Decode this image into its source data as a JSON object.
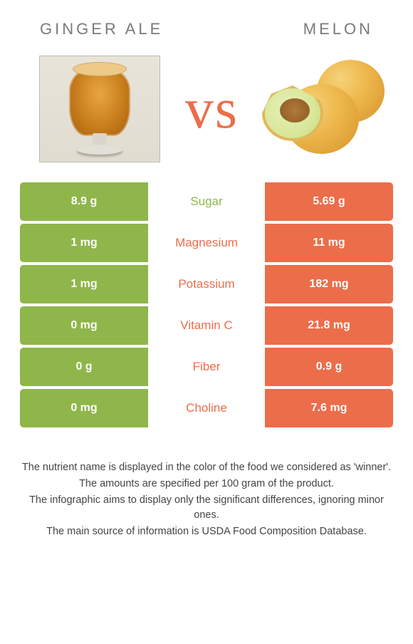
{
  "colors": {
    "left": "#8fb64a",
    "right": "#ec6d4a",
    "mid_text_winner_left": "#8fb64a",
    "mid_text_winner_right": "#ec6d4a"
  },
  "header": {
    "left_title": "GINGER ALE",
    "right_title": "MELON",
    "vs": "vs"
  },
  "rows": [
    {
      "left": "8.9 g",
      "label": "Sugar",
      "right": "5.69 g",
      "winner": "left"
    },
    {
      "left": "1 mg",
      "label": "Magnesium",
      "right": "11 mg",
      "winner": "right"
    },
    {
      "left": "1 mg",
      "label": "Potassium",
      "right": "182 mg",
      "winner": "right"
    },
    {
      "left": "0 mg",
      "label": "Vitamin C",
      "right": "21.8 mg",
      "winner": "right"
    },
    {
      "left": "0 g",
      "label": "Fiber",
      "right": "0.9 g",
      "winner": "right"
    },
    {
      "left": "0 mg",
      "label": "Choline",
      "right": "7.6 mg",
      "winner": "right"
    }
  ],
  "footnotes": [
    "The nutrient name is displayed in the color of the food we considered as 'winner'.",
    "The amounts are specified per 100 gram of the product.",
    "The infographic aims to display only the significant differences, ignoring minor ones.",
    "The main source of information is USDA Food Composition Database."
  ]
}
